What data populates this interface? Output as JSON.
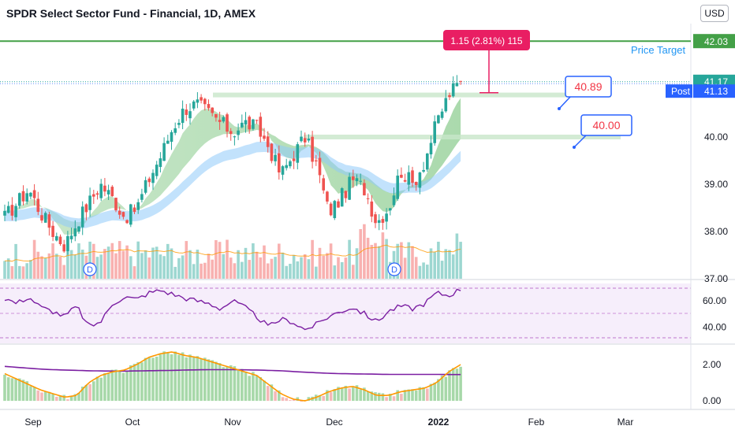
{
  "header": {
    "title": "SPDR Select Sector Fund - Financial, 1D, AMEX",
    "currency": "USD"
  },
  "colors": {
    "up": "#26a69a",
    "down": "#ef5350",
    "target": "#43a047",
    "rsi": "#7b1fa2",
    "fast": "#ff9800",
    "accent": "#2962ff",
    "measure": "#e91e63"
  },
  "price_axis": {
    "ticks": [
      "40.00",
      "39.00",
      "38.00",
      "37.00"
    ],
    "target_label": "42.03",
    "last_label": "41.17",
    "post_tag": "Post",
    "post_label": "41.13"
  },
  "rsi_axis": {
    "ticks": [
      "60.00",
      "40.00"
    ]
  },
  "macd_axis": {
    "ticks": [
      "2.00",
      "0.00"
    ]
  },
  "time_axis": [
    "Sep",
    "Oct",
    "Nov",
    "Dec",
    "2022",
    "Feb",
    "Mar"
  ],
  "annotations": {
    "price_target": "Price Target",
    "measure": "1.15 (2.81%) 115",
    "callout_a": "40.89",
    "callout_b": "40.00",
    "dividend": "D"
  },
  "chart_data": [
    {
      "type": "candlestick",
      "title": "SPDR Select Sector Fund - Financial, 1D, AMEX",
      "x_labels": [
        "Sep",
        "Oct",
        "Nov",
        "Dec",
        "2022",
        "Feb",
        "Mar"
      ],
      "ylim": [
        37.0,
        42.4
      ],
      "horizontal_levels": {
        "price_target": 42.03,
        "last": 41.17,
        "post": 41.13,
        "resistance_a": 40.89,
        "resistance_b": 40.0
      },
      "measure": {
        "change": 1.15,
        "percent": 2.81,
        "bars": 115
      },
      "dividends_marked_in": [
        "Sep",
        "Dec"
      ],
      "close_path": [
        38.3,
        38.6,
        38.9,
        38.4,
        38.0,
        37.7,
        38.2,
        38.6,
        39.0,
        38.7,
        38.3,
        38.5,
        39.1,
        39.6,
        40.2,
        40.6,
        40.7,
        40.5,
        40.3,
        40.1,
        40.3,
        40.2,
        39.8,
        39.2,
        39.6,
        40.0,
        39.4,
        38.4,
        38.7,
        39.1,
        38.9,
        38.2,
        38.5,
        39.3,
        39.0,
        39.5,
        40.3,
        40.9,
        41.17
      ]
    },
    {
      "type": "line",
      "title": "RSI",
      "ylim": [
        30,
        72
      ],
      "ticks": [
        60,
        40
      ],
      "band": [
        30,
        70
      ],
      "values": [
        62,
        58,
        63,
        55,
        52,
        48,
        56,
        40,
        44,
        58,
        63,
        61,
        66,
        68,
        65,
        62,
        60,
        58,
        54,
        60,
        55,
        48,
        40,
        46,
        44,
        38,
        42,
        48,
        52,
        55,
        50,
        44,
        52,
        56,
        54,
        58,
        66,
        64,
        69
      ]
    },
    {
      "type": "bar",
      "title": "MACD",
      "ylim": [
        -0.3,
        3.0
      ],
      "ticks": [
        2,
        0
      ],
      "macd": [
        1.5,
        1.2,
        0.9,
        0.6,
        0.4,
        0.2,
        0.3,
        1.0,
        1.4,
        1.6,
        1.7,
        2.0,
        2.4,
        2.6,
        2.7,
        2.5,
        2.4,
        2.2,
        2.0,
        1.8,
        1.6,
        1.4,
        0.9,
        0.4,
        0.1,
        0.0,
        0.2,
        0.5,
        0.7,
        0.8,
        0.6,
        0.3,
        0.3,
        0.5,
        0.6,
        0.7,
        1.0,
        1.6,
        2.0
      ],
      "signal": [
        1.9,
        1.85,
        1.8,
        1.75,
        1.72,
        1.7,
        1.68,
        1.66,
        1.65,
        1.64,
        1.64,
        1.65,
        1.66,
        1.67,
        1.68,
        1.7,
        1.71,
        1.72,
        1.72,
        1.72,
        1.71,
        1.7,
        1.68,
        1.66,
        1.62,
        1.58,
        1.55,
        1.52,
        1.5,
        1.49,
        1.48,
        1.47,
        1.46,
        1.46,
        1.46,
        1.46,
        1.46,
        1.45,
        1.45
      ]
    }
  ]
}
